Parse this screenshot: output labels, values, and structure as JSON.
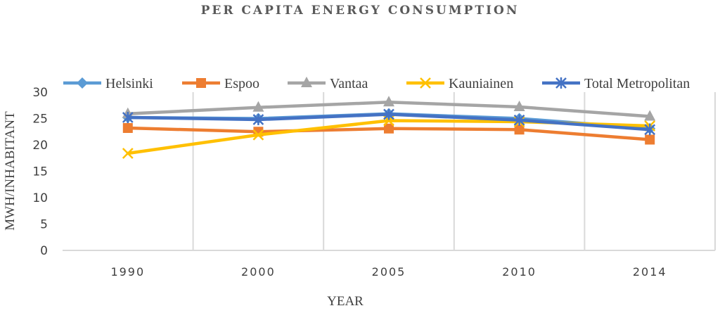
{
  "chart_data": {
    "type": "line",
    "title": "PER CAPITA ENERGY CONSUMPTION",
    "xlabel": "YEAR",
    "ylabel": "MWH/INHABITANT",
    "categories": [
      "1990",
      "2000",
      "2005",
      "2010",
      "2014"
    ],
    "ylim": [
      0,
      30
    ],
    "yticks": [
      0,
      5,
      10,
      15,
      20,
      25,
      30
    ],
    "grid": "vertical",
    "legend_position": "top",
    "series": [
      {
        "name": "Helsinki",
        "color": "#5B9BD5",
        "marker": "diamond",
        "values": [
          25.2,
          25.0,
          25.9,
          25.0,
          23.1
        ]
      },
      {
        "name": "Espoo",
        "color": "#ED7D31",
        "marker": "square",
        "values": [
          23.2,
          22.5,
          23.1,
          22.9,
          21.0
        ]
      },
      {
        "name": "Vantaa",
        "color": "#A5A5A5",
        "marker": "triangle",
        "values": [
          25.9,
          27.1,
          28.1,
          27.2,
          25.4
        ]
      },
      {
        "name": "Kauniainen",
        "color": "#FFC000",
        "marker": "x",
        "values": [
          18.4,
          21.9,
          24.6,
          24.4,
          23.6
        ]
      },
      {
        "name": "Total Metropolitan",
        "color": "#4472C4",
        "marker": "star",
        "values": [
          25.2,
          24.8,
          25.8,
          24.7,
          22.9
        ]
      }
    ]
  }
}
